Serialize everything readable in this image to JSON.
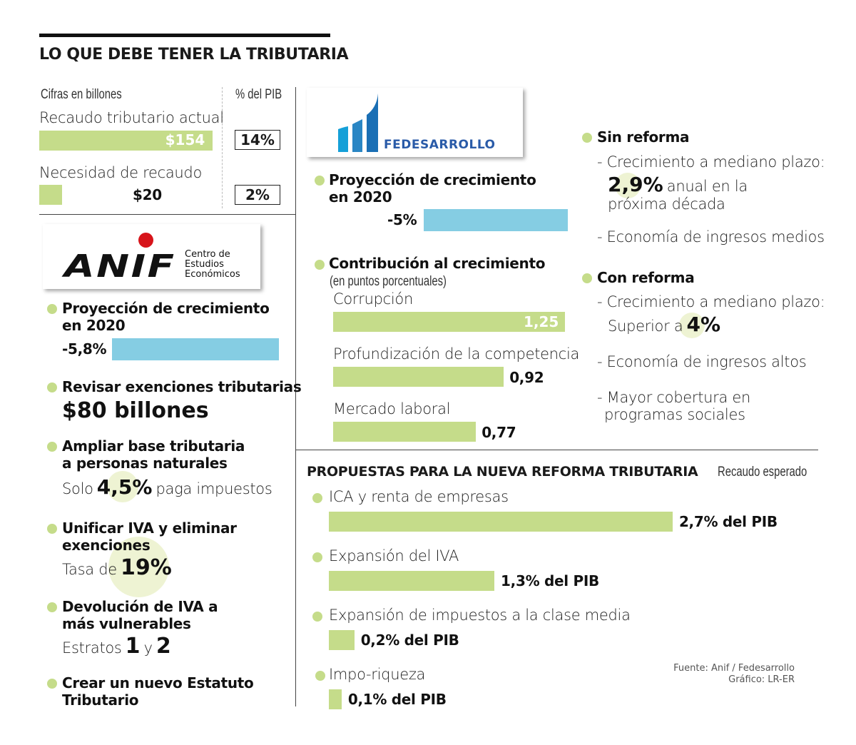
{
  "title": "LO QUE DEBE TENER LA TRIBUTARIA",
  "colors": {
    "green": "#c5dc8a",
    "blue": "#85cde3",
    "highlight": "#eef3d3",
    "anif_red": "#d7141a",
    "fedesarrollo_blue": "#2a5ba8"
  },
  "recaudo": {
    "units_label": "Cifras en billones",
    "pib_label": "% del PIB",
    "actual": {
      "label": "Recaudo tributario actual",
      "value_label": "$154",
      "value": 154,
      "pib": "14%"
    },
    "necesidad": {
      "label": "Necesidad de recaudo",
      "value_label": "$20",
      "value": 20,
      "pib": "2%"
    }
  },
  "anif": {
    "logo_text": "ANIF",
    "logo_subtitle": [
      "Centro de",
      "Estudios",
      "Económicos"
    ],
    "proyeccion": {
      "title": [
        "Proyección de crecimiento",
        "en 2020"
      ],
      "value_label": "-5,8%",
      "value": -5.8
    },
    "exenciones": {
      "title": "Revisar exenciones tributarias",
      "value": "$80 billones"
    },
    "base": {
      "title": [
        "Ampliar base tributaria",
        "a personas naturales"
      ],
      "pre": "Solo",
      "value": "4,5%",
      "post": "paga impuestos"
    },
    "iva": {
      "title": [
        "Unificar IVA y eliminar",
        "exenciones"
      ],
      "pre": "Tasa de",
      "value": "19%"
    },
    "devolucion": {
      "title": [
        "Devolución de IVA a",
        "más vulnerables"
      ],
      "pre": "Estratos",
      "v1": "1",
      "mid": "y",
      "v2": "2"
    },
    "estatuto": {
      "title": [
        "Crear un nuevo Estatuto",
        "Tributario"
      ]
    }
  },
  "fedesarrollo": {
    "logo_text": "FEDESARROLLO",
    "proyeccion": {
      "title": [
        "Proyección de crecimiento",
        "en 2020"
      ],
      "value_label": "-5%",
      "value": -5
    },
    "contribucion": {
      "title": "Contribución al crecimiento",
      "subtitle": "(en puntos porcentuales)"
    },
    "sin_reforma": {
      "title": "Sin reforma",
      "l1": "- Crecimiento a mediano plazo:",
      "value": "2,9%",
      "l2": "anual en la",
      "l3": "próxima década",
      "l4": "- Economía de ingresos medios"
    },
    "con_reforma": {
      "title": "Con reforma",
      "l1": "- Crecimiento a mediano plazo:",
      "pre": "Superior a",
      "value": "4%",
      "l2": "- Economía de ingresos altos",
      "l3": "- Mayor cobertura en",
      "l4": "programas sociales"
    }
  },
  "propuestas": {
    "title": "PROPUESTAS PARA LA NUEVA REFORMA TRIBUTARIA",
    "subtitle": "Recaudo esperado"
  },
  "source": {
    "fuente": "Fuente: Anif / Fedesarrollo",
    "grafico": "Gráfico: LR-ER"
  },
  "chart_data": [
    {
      "type": "bar",
      "orientation": "horizontal",
      "categories": [
        "Recaudo tributario actual",
        "Necesidad de recaudo"
      ],
      "values": [
        154,
        20
      ],
      "data_labels": [
        "$154",
        "$20"
      ],
      "unit": "billones"
    },
    {
      "type": "bar",
      "orientation": "horizontal",
      "categories": [
        "Corrupción",
        "Profundización de la competencia",
        "Mercado laboral"
      ],
      "values": [
        1.25,
        0.92,
        0.77
      ],
      "data_labels": [
        "1,25",
        "0,92",
        "0,77"
      ],
      "title": "Contribución al crecimiento",
      "subtitle": "(en puntos porcentuales)"
    },
    {
      "type": "bar",
      "orientation": "horizontal",
      "categories": [
        "ICA y renta de empresas",
        "Expansión del IVA",
        "Expansión de impuestos a la clase media",
        "Impo-riqueza"
      ],
      "values": [
        2.7,
        1.3,
        0.2,
        0.1
      ],
      "data_labels": [
        "2,7% del PIB",
        "1,3% del PIB",
        "0,2% del PIB",
        "0,1% del PIB"
      ],
      "title": "PROPUESTAS PARA LA NUEVA REFORMA TRIBUTARIA",
      "subtitle": "Recaudo esperado"
    },
    {
      "type": "bar",
      "orientation": "horizontal",
      "categories": [
        "Anif",
        "Fedesarrollo"
      ],
      "values": [
        -5.8,
        -5
      ],
      "data_labels": [
        "-5,8%",
        "-5%"
      ],
      "title": "Proyección de crecimiento en 2020"
    }
  ]
}
